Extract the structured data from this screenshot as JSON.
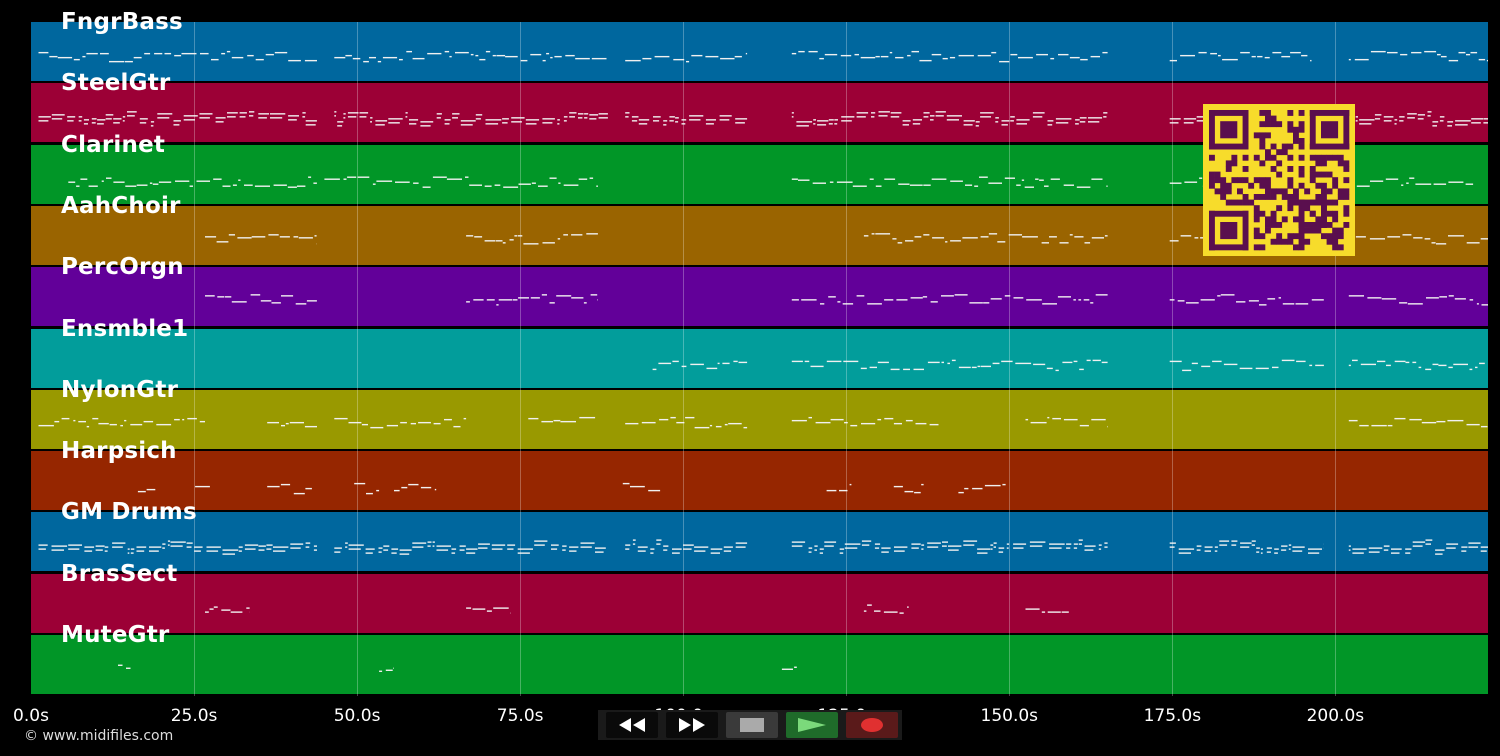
{
  "tracks": [
    {
      "name": "FngrBass",
      "color": "#00679e"
    },
    {
      "name": "SteelGtr",
      "color": "#9c0036"
    },
    {
      "name": "Clarinet",
      "color": "#019627"
    },
    {
      "name": "AahChoir",
      "color": "#9a6400"
    },
    {
      "name": "PercOrgn",
      "color": "#620099"
    },
    {
      "name": "Ensmble1",
      "color": "#029d9b"
    },
    {
      "name": "NylonGtr",
      "color": "#999900"
    },
    {
      "name": "Harpsich",
      "color": "#962600"
    },
    {
      "name": "GM Drums",
      "color": "#00679e"
    },
    {
      "name": "BrasSect",
      "color": "#9c0036"
    },
    {
      "name": "MuteGtr",
      "color": "#019627"
    }
  ],
  "axis": {
    "tick_labels": [
      "0.0s",
      "25.0s",
      "50.0s",
      "75.0s",
      "100.0s",
      "125.0s",
      "150.0s",
      "175.0s",
      "200.0s"
    ],
    "tick_values": [
      0,
      25,
      50,
      75,
      100,
      125,
      150,
      175,
      200
    ],
    "max_seconds": 223.4
  },
  "transport": {
    "buttons": [
      {
        "name": "rewind-button",
        "icon": "rewind-icon",
        "color": "#0a0a0a"
      },
      {
        "name": "fast-forward-button",
        "icon": "fast-forward-icon",
        "color": "#0a0a0a"
      },
      {
        "name": "stop-button",
        "icon": "stop-icon",
        "color": "#3a3a3a"
      },
      {
        "name": "play-button",
        "icon": "play-icon",
        "color": "#1f6b2a"
      },
      {
        "name": "record-button",
        "icon": "record-icon",
        "color": "#5a1a1a"
      }
    ]
  },
  "copyright": "© www.midifiles.com",
  "qr_colors": {
    "bg": "#f7dc2b",
    "fg": "#5a0f4e"
  }
}
